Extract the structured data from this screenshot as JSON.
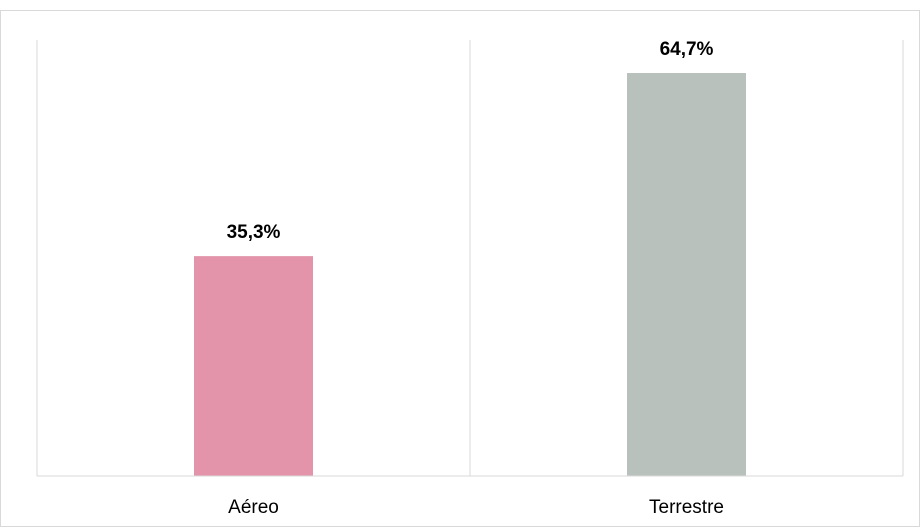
{
  "chart_data": {
    "type": "bar",
    "categories": [
      "Aéreo",
      "Terrestre"
    ],
    "values": [
      35.3,
      64.7
    ],
    "data_labels": [
      "35,3%",
      "64,7%"
    ],
    "colors": [
      "#e394aa",
      "#b9c1bd"
    ],
    "ylim": [
      0,
      70
    ],
    "grid": false,
    "title": "",
    "xlabel": "",
    "ylabel": ""
  }
}
